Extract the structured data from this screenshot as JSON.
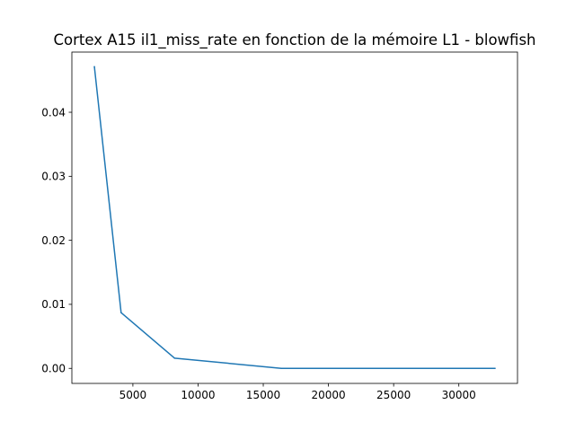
{
  "chart_data": {
    "type": "line",
    "title": "Cortex A15 il1_miss_rate en fonction de la mémoire L1 - blowfish",
    "xlabel": "",
    "ylabel": "",
    "xlim": [
      320,
      34500
    ],
    "ylim": [
      -0.00235,
      0.0494
    ],
    "x_ticks": [
      5000,
      10000,
      15000,
      20000,
      25000,
      30000
    ],
    "x_tick_labels": [
      "5000",
      "10000",
      "15000",
      "20000",
      "25000",
      "30000"
    ],
    "y_ticks": [
      0.0,
      0.01,
      0.02,
      0.03,
      0.04
    ],
    "y_tick_labels": [
      "0.00",
      "0.01",
      "0.02",
      "0.03",
      "0.04"
    ],
    "grid": false,
    "series": [
      {
        "color": "#1f77b4",
        "x": [
          2048,
          4096,
          8192,
          16384,
          32768
        ],
        "y": [
          0.0471,
          0.0087,
          0.0016,
          0.0,
          0.0
        ]
      }
    ]
  }
}
